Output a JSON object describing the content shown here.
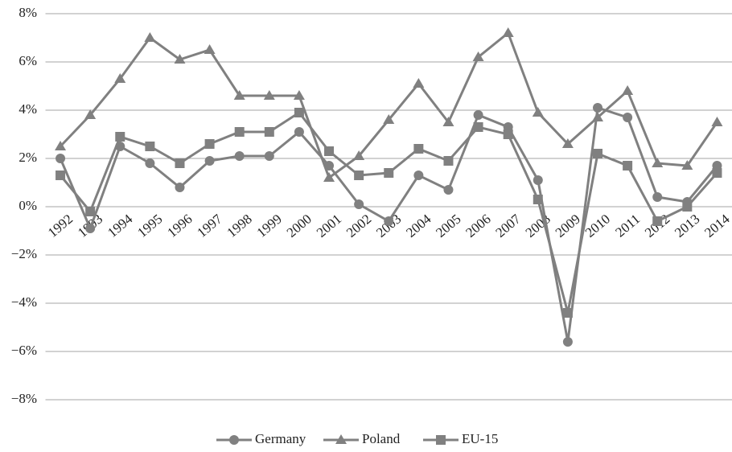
{
  "chart_data": {
    "type": "line",
    "categories": [
      "1992",
      "1993",
      "1994",
      "1995",
      "1996",
      "1997",
      "1998",
      "1999",
      "2000",
      "2001",
      "2002",
      "2003",
      "2004",
      "2005",
      "2006",
      "2007",
      "2008",
      "2009",
      "2010",
      "2011",
      "2012",
      "2013",
      "2014"
    ],
    "series": [
      {
        "name": "Germany",
        "color": "#808080",
        "marker": "circle",
        "values": [
          2.0,
          -0.9,
          2.5,
          1.8,
          0.8,
          1.9,
          2.1,
          2.1,
          3.1,
          1.7,
          0.1,
          -0.6,
          1.3,
          0.7,
          3.8,
          3.3,
          1.1,
          -5.6,
          4.1,
          3.7,
          0.4,
          0.2,
          1.7
        ]
      },
      {
        "name": "Poland",
        "color": "#808080",
        "marker": "triangle",
        "values": [
          2.5,
          3.8,
          5.3,
          7.0,
          6.1,
          6.5,
          4.6,
          4.6,
          4.6,
          1.2,
          2.1,
          3.6,
          5.1,
          3.5,
          6.2,
          7.2,
          3.9,
          2.6,
          3.7,
          4.8,
          1.8,
          1.7,
          3.5
        ]
      },
      {
        "name": "EU-15",
        "color": "#808080",
        "marker": "square",
        "values": [
          1.3,
          -0.2,
          2.9,
          2.5,
          1.8,
          2.6,
          3.1,
          3.1,
          3.9,
          2.3,
          1.3,
          1.4,
          2.4,
          1.9,
          3.3,
          3.0,
          0.3,
          -4.4,
          2.2,
          1.7,
          -0.6,
          0.0,
          1.4
        ]
      }
    ],
    "ylim": [
      -8,
      8
    ],
    "yticks": [
      {
        "value": -8,
        "label": "−8%"
      },
      {
        "value": -6,
        "label": "−6%"
      },
      {
        "value": -4,
        "label": "−4%"
      },
      {
        "value": -2,
        "label": "−2%"
      },
      {
        "value": 0,
        "label": "0%"
      },
      {
        "value": 2,
        "label": "2%"
      },
      {
        "value": 4,
        "label": "4%"
      },
      {
        "value": 6,
        "label": "6%"
      },
      {
        "value": 8,
        "label": "8%"
      }
    ],
    "grid": true,
    "legend": "bottom"
  }
}
